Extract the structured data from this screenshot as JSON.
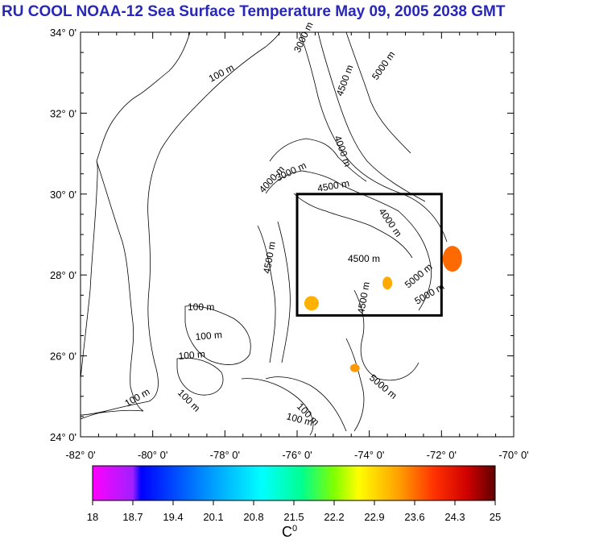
{
  "title": "RU COOL  NOAA-12 Sea Surface Temperature May 09, 2005 2038 GMT",
  "lat_labels": [
    "34° 0'",
    "32° 0'",
    "30° 0'",
    "28° 0'",
    "26° 0'",
    "24° 0'"
  ],
  "lon_labels": [
    "-82° 0'",
    "-80° 0'",
    "-78° 0'",
    "-76° 0'",
    "-74° 0'",
    "-72° 0'",
    "-70° 0'"
  ],
  "contour_labels": [
    {
      "text": "100 m"
    },
    {
      "text": "100 m"
    },
    {
      "text": "3000 m"
    },
    {
      "text": "4500 m"
    },
    {
      "text": "5000 m"
    },
    {
      "text": "4000 m"
    },
    {
      "text": "4000 m"
    },
    {
      "text": "3000 m"
    },
    {
      "text": "4500 m"
    },
    {
      "text": "4000 m"
    },
    {
      "text": "4500 m"
    },
    {
      "text": "4500 m"
    },
    {
      "text": "5000 m"
    },
    {
      "text": "5000 m"
    },
    {
      "text": "4500 m"
    },
    {
      "text": "5000 m"
    },
    {
      "text": "100 m"
    },
    {
      "text": "100 m"
    },
    {
      "text": "100 m"
    },
    {
      "text": "100 m"
    },
    {
      "text": "100 m"
    },
    {
      "text": "100 m"
    }
  ],
  "region_box": {
    "lon_min": -76,
    "lon_max": -72,
    "lat_min": 27,
    "lat_max": 30
  },
  "colorbar": {
    "ticks": [
      "18",
      "18.7",
      "19.4",
      "20.1",
      "20.8",
      "21.5",
      "22.2",
      "22.9",
      "23.6",
      "24.3",
      "25"
    ],
    "unit": "C",
    "unit_sup": "0",
    "colors": [
      "#ff00ff",
      "#0000ff",
      "#00a0ff",
      "#00ffff",
      "#00ff80",
      "#80ff00",
      "#ffff00",
      "#ffa000",
      "#ff4000",
      "#d00000",
      "#600000"
    ]
  },
  "sst_patches": [
    {
      "lon": -71.7,
      "lat": 28.4,
      "color": "#ff6a00"
    },
    {
      "lon": -75.6,
      "lat": 27.3,
      "color": "#ffb000"
    },
    {
      "lon": -73.5,
      "lat": 27.8,
      "color": "#ffaa00"
    },
    {
      "lon": -74.4,
      "lat": 25.7,
      "color": "#ff9900"
    }
  ]
}
